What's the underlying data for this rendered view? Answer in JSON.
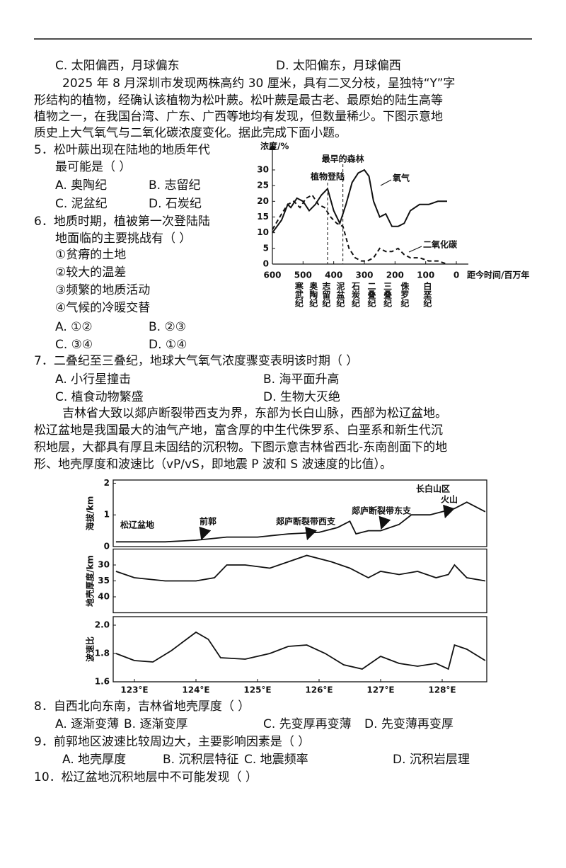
{
  "prev_options": [
    "C. 太阳偏西，月球偏东",
    "D. 太阳偏东，月球偏西"
  ],
  "passage1": [
    "2025 年 8 月深圳市发现两株高约 30 厘米，具有二叉分枝，呈独特“Y”字",
    "形结构的植物，经确认该植物为松叶蕨。松叶蕨是最古老、最原始的陆生高等",
    "植物之一，在我国台湾、广东、广西等地均有发现，但数量稀少。下图示意地",
    "质史上大气氧气与二氧化碳浓度变化。据此完成下面小题。"
  ],
  "questions": [
    {
      "stem": [
        "5．松叶蕨出现在陆地的地质年代",
        "最可能是（   ）"
      ],
      "options": [
        "A. 奥陶纪",
        "B. 志留纪",
        "C. 泥盆纪",
        "D. 石炭纪"
      ]
    },
    {
      "stem": [
        "6．地质时期，植被第一次登陆陆",
        "地面临的主要挑战有（   ）"
      ],
      "statements": [
        "①贫瘠的土地",
        "②较大的温差",
        "③频繁的地质活动",
        "④气候的冷暖交替"
      ],
      "options": [
        "A. ①②",
        "B. ②③",
        "C. ③④",
        "D. ①④"
      ]
    },
    {
      "stem": [
        "7．二叠纪至三叠纪，地球大气氧气浓度骤变表明该时期（   ）"
      ],
      "options": [
        "A. 小行星撞击",
        "B. 海平面升高",
        "C. 植食动物繁盛",
        "D. 生物大灭绝"
      ]
    },
    {
      "stem": [
        "8．自西北向东南，吉林省地壳厚度（   ）"
      ],
      "options": [
        "A. 逐渐变薄",
        "B. 逐渐变厚",
        "C. 先变厚再变薄",
        "D. 先变薄再变厚"
      ]
    },
    {
      "stem": [
        "9．前郭地区波速比较周边大，主要影响因素是（   ）"
      ],
      "options": [
        "A. 地壳厚度",
        "B. 沉积层特征",
        "C. 地震频率",
        "D. 沉积岩层理"
      ]
    },
    {
      "stem": [
        "10．松辽盆地沉积地层中不可能发现（   ）"
      ]
    }
  ],
  "passage2": [
    "吉林省大致以郯庐断裂带西支为界，东部为长白山脉，西部为松辽盆地。",
    "松辽盆地是我国最大的油气产地，富含厚的中生代侏罗系、白垩系和新生代沉",
    "积地层，大都具有厚且未固结的沉积物。下图示意吉林省西北-东南剖面下的地",
    "形、地壳厚度和波速比（vP/vS，即地震 P 波和 S 波速度的比值）。"
  ],
  "chart_data": [
    {
      "type": "line",
      "ylabel": "浓度/%",
      "xlabel": "距今时间/百万年",
      "xlim": [
        600,
        -30
      ],
      "ylim": [
        0,
        33
      ],
      "xticks": [
        600,
        500,
        400,
        300,
        200,
        100,
        0
      ],
      "yticks": [
        0,
        5,
        10,
        15,
        20,
        25,
        30
      ],
      "series": [
        {
          "name": "氧气",
          "color": "#111111",
          "dashed": false,
          "x": [
            600,
            570,
            550,
            540,
            520,
            500,
            480,
            460,
            440,
            420,
            400,
            380,
            360,
            340,
            320,
            300,
            285,
            270,
            250,
            230,
            210,
            190,
            170,
            150,
            120,
            90,
            60,
            50,
            30
          ],
          "values": [
            10,
            14,
            19,
            18,
            21,
            20,
            17,
            19,
            22,
            24,
            17,
            13,
            19,
            26,
            29,
            30,
            28,
            20,
            15,
            16,
            12,
            12,
            13,
            17,
            19,
            19,
            20,
            20,
            20
          ]
        },
        {
          "name": "二氧化碳",
          "color": "#111111",
          "dashed": true,
          "x": [
            600,
            570,
            550,
            530,
            510,
            490,
            470,
            450,
            430,
            410,
            390,
            370,
            350,
            330,
            310,
            290,
            270,
            250,
            230,
            210,
            190,
            170,
            150,
            120,
            90,
            60,
            30
          ],
          "values": [
            11,
            16,
            19,
            20,
            18,
            21,
            22,
            19,
            18,
            15,
            13,
            12,
            5,
            2,
            1,
            1,
            2,
            5,
            4,
            4,
            5,
            3,
            2,
            2,
            1,
            1,
            0
          ]
        }
      ],
      "annotations": [
        {
          "text": "植物登陆",
          "x": 420
        },
        {
          "text": "最早的森林",
          "x": 370
        }
      ],
      "periods": [
        {
          "text": "寒武纪",
          "x": 515
        },
        {
          "text": "奥陶纪",
          "x": 468
        },
        {
          "text": "志留纪",
          "x": 426
        },
        {
          "text": "泥盆纪",
          "x": 380
        },
        {
          "text": "石炭纪",
          "x": 330
        },
        {
          "text": "二叠纪",
          "x": 278
        },
        {
          "text": "三叠纪",
          "x": 226
        },
        {
          "text": "侏罗纪",
          "x": 170
        },
        {
          "text": "白垩纪",
          "x": 96
        }
      ]
    },
    {
      "type": "line",
      "ylabel": "海拔/km",
      "xlim": [
        122.655,
        128.724
      ],
      "ylim": [
        0,
        2.1
      ],
      "yticks": [
        0,
        1,
        2
      ],
      "x": [
        122.7,
        123,
        123.5,
        124,
        124.5,
        125,
        125.5,
        126,
        126.3,
        126.5,
        126.6,
        126.8,
        127,
        127.3,
        127.5,
        127.8,
        128,
        128.2,
        128.4,
        128.7
      ],
      "values": [
        0.15,
        0.15,
        0.15,
        0.2,
        0.3,
        0.3,
        0.4,
        0.45,
        0.6,
        0.8,
        0.4,
        0.5,
        0.5,
        0.7,
        1.0,
        1.0,
        1.1,
        1.2,
        1.4,
        1.1
      ],
      "annotations": [
        {
          "text": "松辽盆地"
        },
        {
          "text": "前郭",
          "x": 124.1
        },
        {
          "text": "郯庐断裂带西支",
          "x": 125.82
        },
        {
          "text": "郯庐断裂带东支",
          "x": 127.02
        },
        {
          "text": "长白山区"
        },
        {
          "text": "火山",
          "x": 128.06
        }
      ]
    },
    {
      "type": "line",
      "ylabel": "地壳厚度/km",
      "xlim": [
        122.655,
        128.724
      ],
      "ylim": [
        45,
        25
      ],
      "yticks": [
        30,
        35,
        40
      ],
      "x": [
        122.7,
        123,
        123.5,
        124,
        124.3,
        124.5,
        124.8,
        125.2,
        125.5,
        125.8,
        126.2,
        126.5,
        126.8,
        127,
        127.3,
        127.6,
        127.9,
        128.1,
        128.2,
        128.4,
        128.7
      ],
      "values": [
        32,
        34,
        35,
        35,
        34,
        30,
        30,
        31,
        29,
        27,
        29,
        31,
        34,
        32,
        33,
        32,
        34,
        33,
        30,
        34,
        35
      ]
    },
    {
      "type": "line",
      "ylabel": "波速比",
      "xlim": [
        122.655,
        128.724
      ],
      "ylim": [
        1.6,
        2.06
      ],
      "yticks": [
        1.6,
        1.8,
        {
          "value": 2,
          "label": "2.0"
        }
      ],
      "xticks": [
        {
          "value": 123,
          "label": "123°E"
        },
        {
          "value": 124,
          "label": "124°E"
        },
        {
          "value": 125,
          "label": "125°E"
        },
        {
          "value": 126,
          "label": "126°E"
        },
        {
          "value": 127,
          "label": "127°E"
        },
        {
          "value": 128,
          "label": "128°E"
        }
      ],
      "x": [
        122.7,
        123,
        123.3,
        123.6,
        124,
        124.2,
        124.4,
        124.8,
        125.2,
        125.5,
        125.8,
        126.1,
        126.4,
        126.7,
        127,
        127.3,
        127.6,
        127.9,
        128.1,
        128.2,
        128.4,
        128.7
      ],
      "values": [
        1.8,
        1.75,
        1.74,
        1.82,
        1.95,
        1.9,
        1.77,
        1.76,
        1.8,
        1.85,
        1.86,
        1.8,
        1.72,
        1.69,
        1.78,
        1.73,
        1.71,
        1.73,
        1.69,
        1.86,
        1.83,
        1.75
      ]
    }
  ]
}
